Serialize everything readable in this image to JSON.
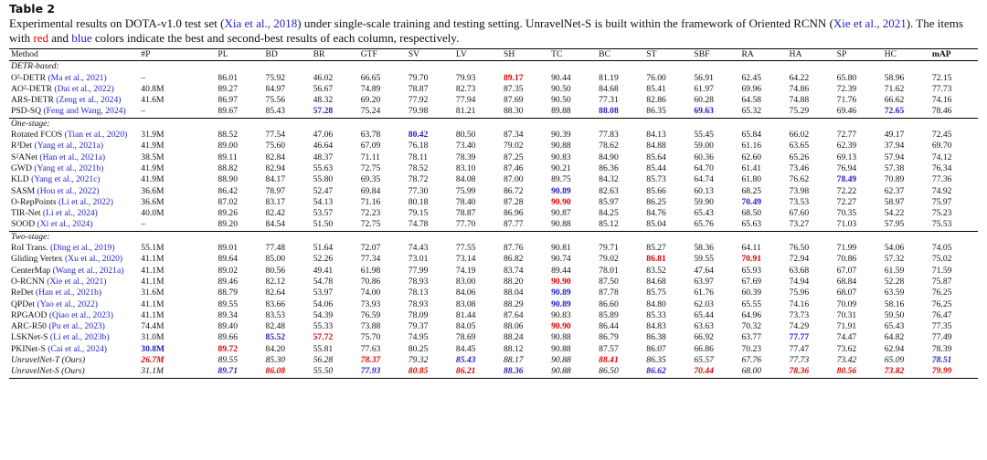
{
  "title": "Table 2",
  "caption": [
    {
      "text": "Experimental results on DOTA-v1.0 test set ("
    },
    {
      "text": "Xia et al., 2018",
      "color": "blue"
    },
    {
      "text": ") under single-scale training and testing setting. UnravelNet-S is built within the framework of Oriented RCNN ("
    },
    {
      "text": "Xie et al., 2021",
      "color": "blue"
    },
    {
      "text": "). The items with "
    },
    {
      "text": "red",
      "color": "red"
    },
    {
      "text": " and "
    },
    {
      "text": "blue",
      "color": "blue"
    },
    {
      "text": " colors indicate the best and second-best results of each column, respectively."
    }
  ],
  "table": {
    "columns": [
      "Method",
      "#P",
      "PL",
      "BD",
      "BR",
      "GTF",
      "SV",
      "LV",
      "SH",
      "TC",
      "BC",
      "ST",
      "SBF",
      "RA",
      "HA",
      "SP",
      "HC",
      "mAP"
    ],
    "groups": [
      {
        "label": "DETR-based:",
        "rows": [
          {
            "method": "O²-DETR",
            "cite": "(Ma et al., 2021)",
            "cells": [
              "–",
              "86.01",
              "75.92",
              "46.02",
              "66.65",
              "79.70",
              "79.93",
              {
                "text": "89.17",
                "color": "red"
              },
              "90.44",
              "81.19",
              "76.00",
              "56.91",
              "62.45",
              "64.22",
              "65.80",
              "58.96",
              "72.15"
            ]
          },
          {
            "method": "AO²-DETR",
            "cite": "(Dai et al., 2022)",
            "cells": [
              "40.8M",
              "89.27",
              "84.97",
              "56.67",
              "74.89",
              "78.87",
              "82.73",
              "87.35",
              "90.50",
              "84.68",
              "85.41",
              "61.97",
              "69.96",
              "74.86",
              "72.39",
              "71.62",
              "77.73"
            ]
          },
          {
            "method": "ARS-DETR",
            "cite": "(Zeng et al., 2024)",
            "cells": [
              "41.6M",
              "86.97",
              "75.56",
              "48.32",
              "69.20",
              "77.92",
              "77.94",
              "87.69",
              "90.50",
              "77.31",
              "82.86",
              "60.28",
              "64.58",
              "74.88",
              "71.76",
              "66.62",
              "74.16"
            ]
          },
          {
            "method": "PSD-SQ",
            "cite": "(Feng and Wang, 2024)",
            "cells": [
              "–",
              "89.67",
              "85.43",
              {
                "text": "57.28",
                "color": "blue"
              },
              "75.24",
              "79.98",
              "81.21",
              "88.30",
              "89.88",
              {
                "text": "88.08",
                "color": "blue"
              },
              "86.35",
              {
                "text": "69.63",
                "color": "blue"
              },
              "65.32",
              "75.29",
              "69.46",
              {
                "text": "72.65",
                "color": "blue"
              },
              "78.46"
            ]
          }
        ]
      },
      {
        "label": "One-stage:",
        "rows": [
          {
            "method": "Rotated FCOS",
            "cite": "(Tian et al., 2020)",
            "cells": [
              "31.9M",
              "88.52",
              "77.54",
              "47.06",
              "63.78",
              {
                "text": "80.42",
                "color": "blue"
              },
              "80.50",
              "87.34",
              "90.39",
              "77.83",
              "84.13",
              "55.45",
              "65.84",
              "66.02",
              "72.77",
              "49.17",
              "72.45"
            ]
          },
          {
            "method": "R³Det",
            "cite": "(Yang et al., 2021a)",
            "cells": [
              "41.9M",
              "89.00",
              "75.60",
              "46.64",
              "67.09",
              "76.18",
              "73.40",
              "79.02",
              "90.88",
              "78.62",
              "84.88",
              "59.00",
              "61.16",
              "63.65",
              "62.39",
              "37.94",
              "69.70"
            ]
          },
          {
            "method": "S²ANet",
            "cite": "(Han et al., 2021a)",
            "cells": [
              "38.5M",
              "89.11",
              "82.84",
              "48.37",
              "71.11",
              "78.11",
              "78.39",
              "87.25",
              "90.83",
              "84.90",
              "85.64",
              "60.36",
              "62.60",
              "65.26",
              "69.13",
              "57.94",
              "74.12"
            ]
          },
          {
            "method": "GWD",
            "cite": "(Yang et al., 2021b)",
            "cells": [
              "41.9M",
              "88.82",
              "82.94",
              "55.63",
              "72.75",
              "78.52",
              "83.10",
              "87.46",
              "90.21",
              "86.36",
              "85.44",
              "64.70",
              "61.41",
              "73.46",
              "76.94",
              "57.38",
              "76.34"
            ]
          },
          {
            "method": "KLD",
            "cite": "(Yang et al., 2021c)",
            "cells": [
              "41.9M",
              "88.90",
              "84.17",
              "55.80",
              "69.35",
              "78.72",
              "84.08",
              "87.00",
              "89.75",
              "84.32",
              "85.73",
              "64.74",
              "61.80",
              "76.62",
              {
                "text": "78.49",
                "color": "blue"
              },
              "70.89",
              "77.36"
            ]
          },
          {
            "method": "SASM",
            "cite": "(Hou et al., 2022)",
            "cells": [
              "36.6M",
              "86.42",
              "78.97",
              "52.47",
              "69.84",
              "77.30",
              "75.99",
              "86.72",
              {
                "text": "90.89",
                "color": "blue"
              },
              "82.63",
              "85.66",
              "60.13",
              "68.25",
              "73.98",
              "72.22",
              "62.37",
              "74.92"
            ]
          },
          {
            "method": "O-RepPoints",
            "cite": "(Li et al., 2022)",
            "cells": [
              "36.6M",
              "87.02",
              "83.17",
              "54.13",
              "71.16",
              "80.18",
              "78.40",
              "87.28",
              {
                "text": "90.90",
                "color": "red"
              },
              "85.97",
              "86.25",
              "59.90",
              {
                "text": "70.49",
                "color": "blue"
              },
              "73.53",
              "72.27",
              "58.97",
              "75.97"
            ]
          },
          {
            "method": "TIR-Net",
            "cite": "(Li et al., 2024)",
            "cells": [
              "40.0M",
              "89.26",
              "82.42",
              "53.57",
              "72.23",
              "79.15",
              "78.87",
              "86.96",
              "90.87",
              "84.25",
              "84.76",
              "65.43",
              "68.50",
              "67.60",
              "70.35",
              "54.22",
              "75.23"
            ]
          },
          {
            "method": "SOOD",
            "cite": "(Xi et al., 2024)",
            "cells": [
              "–",
              "89.20",
              "84.54",
              "51.50",
              "72.75",
              "74.78",
              "77.70",
              "87.77",
              "90.88",
              "85.12",
              "85.04",
              "65.76",
              "65.63",
              "73.27",
              "71.03",
              "57.95",
              "75.53"
            ]
          }
        ]
      },
      {
        "label": "Two-stage:",
        "rows": [
          {
            "method": "RoI Trans.",
            "cite": "(Ding et al., 2019)",
            "cells": [
              "55.1M",
              "89.01",
              "77.48",
              "51.64",
              "72.07",
              "74.43",
              "77.55",
              "87.76",
              "90.81",
              "79.71",
              "85.27",
              "58.36",
              "64.11",
              "76.50",
              "71.99",
              "54.06",
              "74.05"
            ]
          },
          {
            "method": "Gliding Vertex",
            "cite": "(Xu et al., 2020)",
            "cells": [
              "41.1M",
              "89.64",
              "85.00",
              "52.26",
              "77.34",
              "73.01",
              "73.14",
              "86.82",
              "90.74",
              "79.02",
              {
                "text": "86.81",
                "color": "red"
              },
              "59.55",
              {
                "text": "70.91",
                "color": "red"
              },
              "72.94",
              "70.86",
              "57.32",
              "75.02"
            ]
          },
          {
            "method": "CenterMap",
            "cite": "(Wang et al., 2021a)",
            "cells": [
              "41.1M",
              "89.02",
              "80.56",
              "49.41",
              "61.98",
              "77.99",
              "74.19",
              "83.74",
              "89.44",
              "78.01",
              "83.52",
              "47.64",
              "65.93",
              "63.68",
              "67.07",
              "61.59",
              "71.59"
            ]
          },
          {
            "method": "O-RCNN",
            "cite": "(Xie et al., 2021)",
            "cells": [
              "41.1M",
              "89.46",
              "82.12",
              "54.78",
              "70.86",
              "78.93",
              "83.00",
              "88.20",
              {
                "text": "90.90",
                "color": "red"
              },
              "87.50",
              "84.68",
              "63.97",
              "67.69",
              "74.94",
              "68.84",
              "52.28",
              "75.87"
            ]
          },
          {
            "method": "ReDet",
            "cite": "(Han et al., 2021b)",
            "cells": [
              "31.6M",
              "88.79",
              "82.64",
              "53.97",
              "74.00",
              "78.13",
              "84.06",
              "88.04",
              {
                "text": "90.89",
                "color": "blue"
              },
              "87.78",
              "85.75",
              "61.76",
              "60.39",
              "75.96",
              "68.07",
              "63.59",
              "76.25"
            ]
          },
          {
            "method": "QPDet",
            "cite": "(Yao et al., 2022)",
            "cells": [
              "41.1M",
              "89.55",
              "83.66",
              "54.06",
              "73.93",
              "78.93",
              "83.08",
              "88.29",
              {
                "text": "90.89",
                "color": "blue"
              },
              "86.60",
              "84.80",
              "62.03",
              "65.55",
              "74.16",
              "70.09",
              "58.16",
              "76.25"
            ]
          },
          {
            "method": "RPGAOD",
            "cite": "(Qiao et al., 2023)",
            "cells": [
              "41.1M",
              "89.34",
              "83.53",
              "54.39",
              "76.59",
              "78.09",
              "81.44",
              "87.64",
              "90.83",
              "85.89",
              "85.33",
              "65.44",
              "64.96",
              "73.73",
              "70.31",
              "59.50",
              "76.47"
            ]
          },
          {
            "method": "ARC-R50",
            "cite": "(Pu et al., 2023)",
            "cells": [
              "74.4M",
              "89.40",
              "82.48",
              "55.33",
              "73.88",
              "79.37",
              "84.05",
              "88.06",
              {
                "text": "90.90",
                "color": "red"
              },
              "86.44",
              "84.83",
              "63.63",
              "70.32",
              "74.29",
              "71.91",
              "65.43",
              "77.35"
            ]
          },
          {
            "method": "LSKNet-S",
            "cite": "(Li et al., 2023b)",
            "cells": [
              "31.0M",
              "89.66",
              {
                "text": "85.52",
                "color": "blue"
              },
              {
                "text": "57.72",
                "color": "red"
              },
              "75.70",
              "74.95",
              "78.69",
              "88.24",
              "90.88",
              "86.79",
              "86.38",
              "66.92",
              "63.77",
              {
                "text": "77.77",
                "color": "blue"
              },
              "74.47",
              "64.82",
              "77.49"
            ]
          },
          {
            "method": "PKINet-S",
            "cite": "(Cai et al., 2024)",
            "cells": [
              {
                "text": "30.8M",
                "color": "blue"
              },
              {
                "text": "89.72",
                "color": "red"
              },
              "84.20",
              "55.81",
              "77.63",
              "80.25",
              "84.45",
              "88.12",
              "90.88",
              "87.57",
              "86.07",
              "66.86",
              "70.23",
              "77.47",
              "73.62",
              "62.94",
              "78.39"
            ]
          },
          {
            "method": "UnravelNet-T (Ours)",
            "italic": true,
            "cells": [
              {
                "text": "26.7M",
                "color": "red"
              },
              "89.55",
              "85.30",
              "56.28",
              {
                "text": "78.37",
                "color": "red"
              },
              "79.32",
              {
                "text": "85.43",
                "color": "blue"
              },
              "88.17",
              "90.88",
              {
                "text": "88.41",
                "color": "red"
              },
              "86.35",
              "65.57",
              "67.76",
              "77.73",
              "73.42",
              "65.09",
              {
                "text": "78.51",
                "color": "blue"
              }
            ]
          },
          {
            "method": "UnravelNet-S (Ours)",
            "italic": true,
            "cells": [
              "31.1M",
              {
                "text": "89.71",
                "color": "blue"
              },
              {
                "text": "86.08",
                "color": "red"
              },
              "55.50",
              {
                "text": "77.93",
                "color": "blue"
              },
              {
                "text": "80.85",
                "color": "red"
              },
              {
                "text": "86.21",
                "color": "red"
              },
              {
                "text": "88.36",
                "color": "blue"
              },
              "90.88",
              "86.50",
              {
                "text": "86.62",
                "color": "blue"
              },
              {
                "text": "70.44",
                "color": "red"
              },
              "68.00",
              {
                "text": "78.36",
                "color": "red"
              },
              {
                "text": "80.56",
                "color": "red"
              },
              {
                "text": "73.82",
                "color": "red"
              },
              {
                "text": "79.99",
                "color": "red"
              }
            ]
          }
        ]
      }
    ]
  }
}
